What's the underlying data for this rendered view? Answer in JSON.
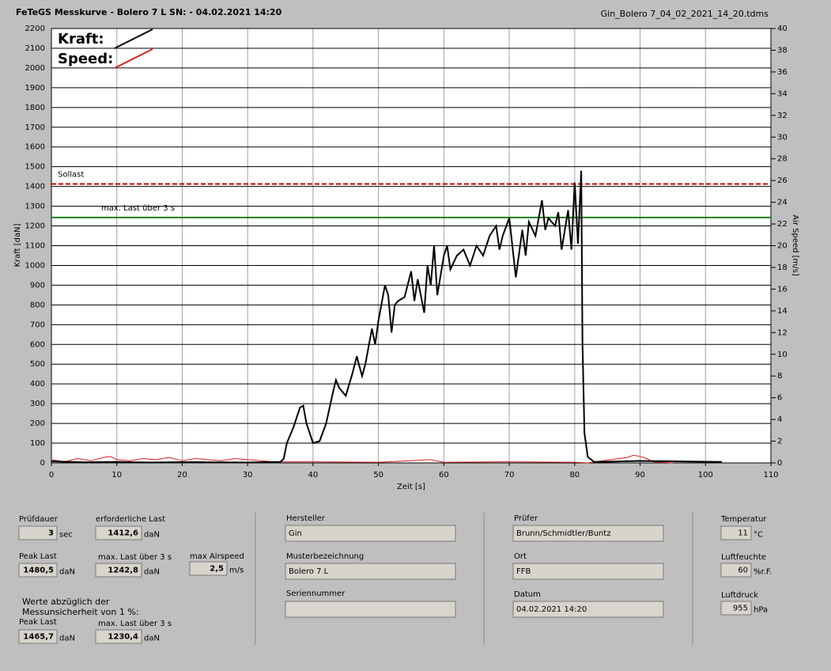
{
  "header": {
    "title": "FeTeGS Messkurve - Bolero 7 L  SN:  - 04.02.2021 14:20",
    "file": "Gin_Bolero 7_04_02_2021_14_20.tdms"
  },
  "chart_data": {
    "type": "line",
    "xlabel": "Zeit [s]",
    "ylabel": "Kraft [daN]",
    "y2label": "Air Speed [m/s]",
    "xlim": [
      0,
      110
    ],
    "xticks": [
      0,
      10,
      20,
      30,
      40,
      50,
      60,
      70,
      80,
      90,
      100,
      110
    ],
    "ylim": [
      0,
      2200
    ],
    "yticks": [
      0,
      100,
      200,
      300,
      400,
      500,
      600,
      700,
      800,
      900,
      1000,
      1100,
      1200,
      1300,
      1400,
      1500,
      1600,
      1700,
      1800,
      1900,
      2000,
      2100,
      2200
    ],
    "y2lim": [
      0,
      40
    ],
    "y2ticks": [
      0,
      2,
      4,
      6,
      8,
      10,
      12,
      14,
      16,
      18,
      20,
      22,
      24,
      26,
      28,
      30,
      32,
      34,
      36,
      38,
      40
    ],
    "grid": true,
    "legend": "upper left",
    "series": [
      {
        "name": "Kraft:",
        "color": "#000000",
        "x": [
          0,
          5,
          10,
          15,
          20,
          25,
          30,
          35,
          35.5,
          36,
          37,
          38,
          38.5,
          39,
          40,
          41,
          42,
          43,
          43.5,
          44,
          45,
          46,
          46.7,
          47,
          47.5,
          48,
          49,
          49.5,
          50,
          51,
          51.5,
          52,
          52.5,
          53,
          54,
          55,
          55.5,
          56,
          57,
          57.5,
          58,
          58.5,
          59,
          60,
          60.5,
          61,
          62,
          63,
          64,
          65,
          66,
          67,
          68,
          68.5,
          69,
          70,
          71,
          72,
          72.5,
          73,
          74,
          75,
          75.5,
          76,
          77,
          77.5,
          78,
          79,
          79.5,
          80,
          80.5,
          81,
          81.2,
          81.5,
          82,
          83,
          90,
          95,
          102.5
        ],
        "values": [
          8,
          3,
          5,
          2,
          4,
          3,
          2,
          5,
          20,
          100,
          180,
          280,
          290,
          200,
          100,
          110,
          200,
          350,
          420,
          380,
          340,
          450,
          540,
          500,
          440,
          500,
          680,
          600,
          720,
          900,
          850,
          660,
          800,
          820,
          840,
          970,
          820,
          930,
          760,
          1000,
          900,
          1100,
          850,
          1050,
          1100,
          980,
          1050,
          1080,
          1000,
          1100,
          1050,
          1150,
          1200,
          1080,
          1150,
          1240,
          940,
          1180,
          1050,
          1220,
          1150,
          1330,
          1180,
          1240,
          1200,
          1270,
          1080,
          1280,
          1080,
          1420,
          1110,
          1480,
          600,
          150,
          30,
          5,
          10,
          8,
          5
        ]
      },
      {
        "name": "Speed:",
        "color": "#d42020",
        "axis": "y2",
        "x": [
          0,
          2,
          4,
          6,
          8,
          9,
          10,
          12,
          14,
          16,
          18,
          20,
          22,
          24,
          26,
          28,
          30,
          32,
          34,
          36,
          40,
          50,
          58,
          60,
          70,
          80,
          82,
          88,
          89,
          90,
          91,
          92,
          95
        ],
        "values": [
          0.3,
          0.1,
          0.4,
          0.2,
          0.5,
          0.6,
          0.3,
          0.2,
          0.4,
          0.3,
          0.5,
          0.2,
          0.4,
          0.3,
          0.2,
          0.4,
          0.3,
          0.2,
          0.1,
          0.1,
          0.1,
          0.05,
          0.3,
          0.05,
          0.1,
          0.05,
          0,
          0.5,
          0.7,
          0.6,
          0.4,
          0.1,
          0
        ]
      }
    ],
    "reference_lines": [
      {
        "name": "Sollast",
        "value": 1412.6,
        "color": "#c00000",
        "style": "dashed"
      },
      {
        "name": "max. Last über  3 s",
        "value": 1242.8,
        "color": "#208020",
        "style": "solid"
      }
    ]
  },
  "panel": {
    "fields": [
      {
        "label": "Prüfdauer",
        "value": "3",
        "unit": "sec"
      },
      {
        "label": "erforderliche Last",
        "value": "1412,6",
        "unit": "daN"
      },
      {
        "label": "Peak Last",
        "value": "1480,5",
        "unit": "daN"
      },
      {
        "label": "max. Last über  3 s",
        "value": "1242,8",
        "unit": "daN"
      },
      {
        "label": "max Airspeed",
        "value": "2,5",
        "unit": "m/s"
      },
      {
        "label": "Peak Last",
        "value": "1465,7",
        "unit": "daN"
      },
      {
        "label": "max. Last über  3 s",
        "value": "1230,4",
        "unit": "daN"
      },
      {
        "label": "Hersteller",
        "value": "Gin"
      },
      {
        "label": "Musterbezeichnung",
        "value": "Bolero 7 L"
      },
      {
        "label": "Seriennummer"
      },
      {
        "label": "Prüfer",
        "value": "Brunn/Schmidtler/Buntz"
      },
      {
        "label": "Ort",
        "value": "FFB"
      },
      {
        "label": "Datum",
        "value": "04.02.2021 14:20"
      },
      {
        "label": "Temperatur",
        "value": "11",
        "unit": "°C"
      },
      {
        "label": "Luftfeuchte",
        "value": "60",
        "unit": "%r.F."
      },
      {
        "label": "Luftdruck",
        "value": "955",
        "unit": "hPa"
      }
    ],
    "note": [
      "Werte abzüglich der",
      "Messunsicherheit von 1  %:"
    ]
  }
}
